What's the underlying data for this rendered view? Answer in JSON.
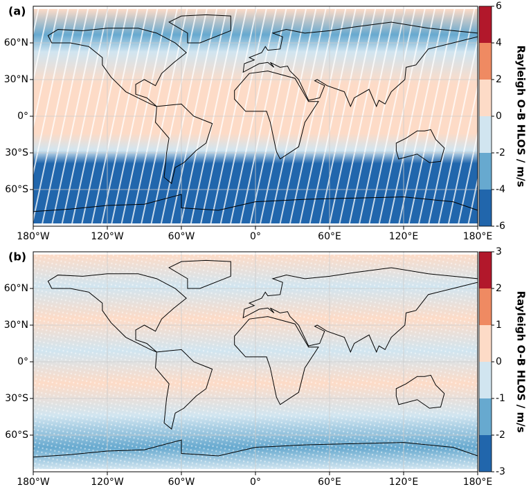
{
  "chart_data": [
    {
      "type": "scatter-map",
      "label": "(a)",
      "colorbar_label": "Rayleigh O-B HLOS / m/s",
      "xlim": [
        -180,
        180
      ],
      "ylim": [
        -90,
        90
      ],
      "xticks": [
        {
          "value": -180,
          "label": "180°W"
        },
        {
          "value": -120,
          "label": "120°W"
        },
        {
          "value": -60,
          "label": "60°W"
        },
        {
          "value": 0,
          "label": "0°"
        },
        {
          "value": 60,
          "label": "60°E"
        },
        {
          "value": 120,
          "label": "120°E"
        },
        {
          "value": 180,
          "label": "180°E"
        }
      ],
      "yticks": [
        {
          "value": 60,
          "label": "60°N"
        },
        {
          "value": 30,
          "label": "30°N"
        },
        {
          "value": 0,
          "label": "0°"
        },
        {
          "value": -30,
          "label": "30°S"
        },
        {
          "value": -60,
          "label": "60°S"
        }
      ],
      "grid": true,
      "colorbar": {
        "bounds": [
          -6,
          -4,
          -2,
          0,
          2,
          4,
          6
        ],
        "colors": [
          "#2166ac",
          "#67a9cf",
          "#d1e5f0",
          "#fddbc7",
          "#ef8a62",
          "#b2182b"
        ]
      }
    },
    {
      "type": "scatter-map",
      "label": "(b)",
      "colorbar_label": "Rayleigh O-B HLOS / m/s",
      "xlim": [
        -180,
        180
      ],
      "ylim": [
        -90,
        90
      ],
      "xticks": [
        {
          "value": -180,
          "label": "180°W"
        },
        {
          "value": -120,
          "label": "120°W"
        },
        {
          "value": -60,
          "label": "60°W"
        },
        {
          "value": 0,
          "label": "0°"
        },
        {
          "value": 60,
          "label": "60°E"
        },
        {
          "value": 120,
          "label": "120°E"
        },
        {
          "value": 180,
          "label": "180°E"
        }
      ],
      "yticks": [
        {
          "value": 60,
          "label": "60°N"
        },
        {
          "value": 30,
          "label": "30°N"
        },
        {
          "value": 0,
          "label": "0°"
        },
        {
          "value": -30,
          "label": "30°S"
        },
        {
          "value": -60,
          "label": "60°S"
        }
      ],
      "grid": true,
      "colorbar": {
        "bounds": [
          -3,
          -2,
          -1,
          0,
          1,
          2,
          3
        ],
        "colors": [
          "#2166ac",
          "#67a9cf",
          "#d1e5f0",
          "#fddbc7",
          "#ef8a62",
          "#b2182b"
        ]
      }
    }
  ]
}
